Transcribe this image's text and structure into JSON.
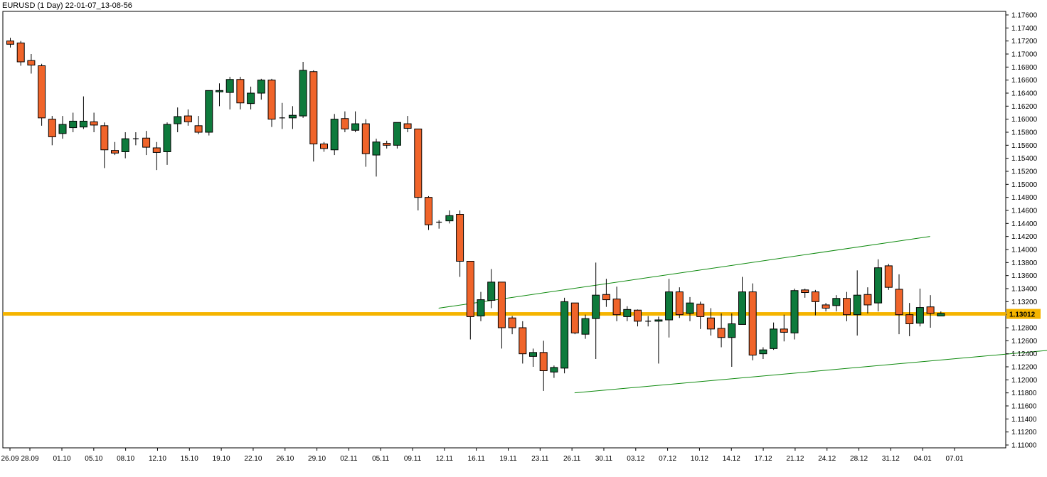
{
  "header": {
    "title": "EURUSD (1 Day) 22-01-07_13-08-56"
  },
  "current_price": {
    "label": "1.13012",
    "value": 1.13012,
    "color": "#f5b400"
  },
  "colors": {
    "up": "#0e7a3c",
    "down": "#f0642a",
    "wick": "#000000",
    "channel": "#0f8a0f",
    "border": "#000000"
  },
  "chart_data": {
    "type": "candlestick",
    "title": "EURUSD (1 Day) 22-01-07_13-08-56",
    "ylim": [
      1.11,
      1.176
    ],
    "y_ticks": [
      "1.11000",
      "1.11200",
      "1.11400",
      "1.11600",
      "1.11800",
      "1.12000",
      "1.12200",
      "1.12400",
      "1.12600",
      "1.12800",
      "1.13000",
      "1.13200",
      "1.13400",
      "1.13600",
      "1.13800",
      "1.14000",
      "1.14200",
      "1.14400",
      "1.14600",
      "1.14800",
      "1.15000",
      "1.15200",
      "1.15400",
      "1.15600",
      "1.15800",
      "1.16000",
      "1.16200",
      "1.16400",
      "1.16600",
      "1.16800",
      "1.17000",
      "1.17200",
      "1.17400",
      "1.17600"
    ],
    "x_labels": [
      "26.09",
      "28.09",
      "01.10",
      "05.10",
      "08.10",
      "12.10",
      "15.10",
      "19.10",
      "22.10",
      "26.10",
      "29.10",
      "02.11",
      "05.11",
      "09.11",
      "12.11",
      "16.11",
      "19.11",
      "23.11",
      "26.11",
      "30.11",
      "03.12",
      "07.12",
      "10.12",
      "14.12",
      "17.12",
      "21.12",
      "24.12",
      "28.12",
      "31.12",
      "04.01",
      "07.01"
    ],
    "horizontal_line": 1.13012,
    "channel": {
      "upper": [
        [
          1.131,
          41
        ],
        [
          1.142,
          88
        ]
      ],
      "lower": [
        [
          1.118,
          54
        ],
        [
          1.1265,
          113
        ]
      ]
    },
    "candles": [
      {
        "o": 1.172,
        "h": 1.1725,
        "l": 1.171,
        "c": 1.1715
      },
      {
        "o": 1.1717,
        "h": 1.172,
        "l": 1.1682,
        "c": 1.1688
      },
      {
        "o": 1.169,
        "h": 1.17,
        "l": 1.167,
        "c": 1.1683
      },
      {
        "o": 1.1682,
        "h": 1.1685,
        "l": 1.159,
        "c": 1.1602
      },
      {
        "o": 1.16,
        "h": 1.1605,
        "l": 1.156,
        "c": 1.1573
      },
      {
        "o": 1.1578,
        "h": 1.1605,
        "l": 1.157,
        "c": 1.1592
      },
      {
        "o": 1.1587,
        "h": 1.161,
        "l": 1.158,
        "c": 1.1597
      },
      {
        "o": 1.1588,
        "h": 1.1635,
        "l": 1.1585,
        "c": 1.1597
      },
      {
        "o": 1.1596,
        "h": 1.161,
        "l": 1.158,
        "c": 1.1591
      },
      {
        "o": 1.159,
        "h": 1.1595,
        "l": 1.1525,
        "c": 1.1553
      },
      {
        "o": 1.1552,
        "h": 1.1565,
        "l": 1.1545,
        "c": 1.1548
      },
      {
        "o": 1.155,
        "h": 1.158,
        "l": 1.154,
        "c": 1.157
      },
      {
        "o": 1.157,
        "h": 1.158,
        "l": 1.156,
        "c": 1.1569
      },
      {
        "o": 1.1571,
        "h": 1.1582,
        "l": 1.1545,
        "c": 1.1557
      },
      {
        "o": 1.1556,
        "h": 1.1565,
        "l": 1.1522,
        "c": 1.1549
      },
      {
        "o": 1.155,
        "h": 1.1595,
        "l": 1.153,
        "c": 1.1592
      },
      {
        "o": 1.1593,
        "h": 1.1618,
        "l": 1.158,
        "c": 1.1604
      },
      {
        "o": 1.1605,
        "h": 1.1615,
        "l": 1.159,
        "c": 1.1596
      },
      {
        "o": 1.159,
        "h": 1.1605,
        "l": 1.1577,
        "c": 1.158
      },
      {
        "o": 1.158,
        "h": 1.164,
        "l": 1.1575,
        "c": 1.1644
      },
      {
        "o": 1.1642,
        "h": 1.1655,
        "l": 1.162,
        "c": 1.1644
      },
      {
        "o": 1.1641,
        "h": 1.1665,
        "l": 1.1615,
        "c": 1.1661
      },
      {
        "o": 1.1661,
        "h": 1.1665,
        "l": 1.1615,
        "c": 1.1625
      },
      {
        "o": 1.1624,
        "h": 1.165,
        "l": 1.1615,
        "c": 1.164
      },
      {
        "o": 1.164,
        "h": 1.1662,
        "l": 1.163,
        "c": 1.166
      },
      {
        "o": 1.166,
        "h": 1.1662,
        "l": 1.1588,
        "c": 1.16
      },
      {
        "o": 1.1602,
        "h": 1.1625,
        "l": 1.1585,
        "c": 1.1602
      },
      {
        "o": 1.1602,
        "h": 1.162,
        "l": 1.1585,
        "c": 1.1606
      },
      {
        "o": 1.1605,
        "h": 1.1688,
        "l": 1.1602,
        "c": 1.1675
      },
      {
        "o": 1.1673,
        "h": 1.1675,
        "l": 1.1535,
        "c": 1.1562
      },
      {
        "o": 1.1562,
        "h": 1.1565,
        "l": 1.155,
        "c": 1.1555
      },
      {
        "o": 1.1553,
        "h": 1.1608,
        "l": 1.1545,
        "c": 1.16
      },
      {
        "o": 1.1601,
        "h": 1.1612,
        "l": 1.158,
        "c": 1.1585
      },
      {
        "o": 1.1583,
        "h": 1.1612,
        "l": 1.158,
        "c": 1.1593
      },
      {
        "o": 1.1593,
        "h": 1.16,
        "l": 1.1527,
        "c": 1.1547
      },
      {
        "o": 1.1545,
        "h": 1.157,
        "l": 1.1512,
        "c": 1.1565
      },
      {
        "o": 1.1563,
        "h": 1.1567,
        "l": 1.1555,
        "c": 1.156
      },
      {
        "o": 1.156,
        "h": 1.1595,
        "l": 1.1555,
        "c": 1.1595
      },
      {
        "o": 1.1593,
        "h": 1.1605,
        "l": 1.158,
        "c": 1.1586
      },
      {
        "o": 1.1585,
        "h": 1.1582,
        "l": 1.146,
        "c": 1.148
      },
      {
        "o": 1.148,
        "h": 1.1482,
        "l": 1.143,
        "c": 1.1438
      },
      {
        "o": 1.1442,
        "h": 1.1445,
        "l": 1.1432,
        "c": 1.1442
      },
      {
        "o": 1.1444,
        "h": 1.146,
        "l": 1.144,
        "c": 1.1452
      },
      {
        "o": 1.1454,
        "h": 1.146,
        "l": 1.1358,
        "c": 1.1382
      },
      {
        "o": 1.1382,
        "h": 1.138,
        "l": 1.1262,
        "c": 1.1297
      },
      {
        "o": 1.1298,
        "h": 1.1335,
        "l": 1.129,
        "c": 1.1323
      },
      {
        "o": 1.1322,
        "h": 1.137,
        "l": 1.131,
        "c": 1.135
      },
      {
        "o": 1.135,
        "h": 1.135,
        "l": 1.1248,
        "c": 1.128
      },
      {
        "o": 1.1295,
        "h": 1.1298,
        "l": 1.127,
        "c": 1.128
      },
      {
        "o": 1.128,
        "h": 1.129,
        "l": 1.1225,
        "c": 1.124
      },
      {
        "o": 1.1236,
        "h": 1.1248,
        "l": 1.122,
        "c": 1.1242
      },
      {
        "o": 1.1242,
        "h": 1.126,
        "l": 1.1183,
        "c": 1.1214
      },
      {
        "o": 1.1212,
        "h": 1.1222,
        "l": 1.1203,
        "c": 1.1219
      },
      {
        "o": 1.1218,
        "h": 1.1326,
        "l": 1.121,
        "c": 1.132
      },
      {
        "o": 1.1318,
        "h": 1.1313,
        "l": 1.127,
        "c": 1.1272
      },
      {
        "o": 1.127,
        "h": 1.13,
        "l": 1.1263,
        "c": 1.1294
      },
      {
        "o": 1.1294,
        "h": 1.138,
        "l": 1.1232,
        "c": 1.133
      },
      {
        "o": 1.1331,
        "h": 1.1355,
        "l": 1.1312,
        "c": 1.1323
      },
      {
        "o": 1.1324,
        "h": 1.1343,
        "l": 1.129,
        "c": 1.13
      },
      {
        "o": 1.1297,
        "h": 1.1313,
        "l": 1.129,
        "c": 1.1308
      },
      {
        "o": 1.1307,
        "h": 1.1308,
        "l": 1.1282,
        "c": 1.129
      },
      {
        "o": 1.129,
        "h": 1.1298,
        "l": 1.1282,
        "c": 1.129
      },
      {
        "o": 1.129,
        "h": 1.1297,
        "l": 1.1225,
        "c": 1.1292
      },
      {
        "o": 1.1292,
        "h": 1.1355,
        "l": 1.1265,
        "c": 1.1335
      },
      {
        "o": 1.1335,
        "h": 1.1342,
        "l": 1.1295,
        "c": 1.13
      },
      {
        "o": 1.1302,
        "h": 1.1327,
        "l": 1.129,
        "c": 1.1318
      },
      {
        "o": 1.1316,
        "h": 1.132,
        "l": 1.1278,
        "c": 1.1297
      },
      {
        "o": 1.1295,
        "h": 1.131,
        "l": 1.1268,
        "c": 1.1278
      },
      {
        "o": 1.1279,
        "h": 1.1302,
        "l": 1.125,
        "c": 1.1265
      },
      {
        "o": 1.1265,
        "h": 1.1302,
        "l": 1.122,
        "c": 1.1286
      },
      {
        "o": 1.1285,
        "h": 1.1358,
        "l": 1.1285,
        "c": 1.1335
      },
      {
        "o": 1.1335,
        "h": 1.1348,
        "l": 1.123,
        "c": 1.1238
      },
      {
        "o": 1.124,
        "h": 1.125,
        "l": 1.1232,
        "c": 1.1246
      },
      {
        "o": 1.1248,
        "h": 1.1288,
        "l": 1.1246,
        "c": 1.1278
      },
      {
        "o": 1.1278,
        "h": 1.13,
        "l": 1.1259,
        "c": 1.1273
      },
      {
        "o": 1.1272,
        "h": 1.134,
        "l": 1.1262,
        "c": 1.1337
      },
      {
        "o": 1.1338,
        "h": 1.134,
        "l": 1.1326,
        "c": 1.1334
      },
      {
        "o": 1.1335,
        "h": 1.1338,
        "l": 1.1299,
        "c": 1.132
      },
      {
        "o": 1.1315,
        "h": 1.1318,
        "l": 1.1305,
        "c": 1.131
      },
      {
        "o": 1.1314,
        "h": 1.133,
        "l": 1.1305,
        "c": 1.1325
      },
      {
        "o": 1.1325,
        "h": 1.1335,
        "l": 1.129,
        "c": 1.13
      },
      {
        "o": 1.13,
        "h": 1.1368,
        "l": 1.1268,
        "c": 1.133
      },
      {
        "o": 1.1331,
        "h": 1.1342,
        "l": 1.1302,
        "c": 1.1315
      },
      {
        "o": 1.1318,
        "h": 1.1385,
        "l": 1.1305,
        "c": 1.1372
      },
      {
        "o": 1.1375,
        "h": 1.1378,
        "l": 1.1338,
        "c": 1.1342
      },
      {
        "o": 1.1339,
        "h": 1.1362,
        "l": 1.127,
        "c": 1.13
      },
      {
        "o": 1.13,
        "h": 1.1318,
        "l": 1.1267,
        "c": 1.1286
      },
      {
        "o": 1.1287,
        "h": 1.134,
        "l": 1.1282,
        "c": 1.1311
      },
      {
        "o": 1.1312,
        "h": 1.133,
        "l": 1.128,
        "c": 1.1302
      },
      {
        "o": 1.1298,
        "h": 1.1305,
        "l": 1.1298,
        "c": 1.1302
      }
    ]
  }
}
